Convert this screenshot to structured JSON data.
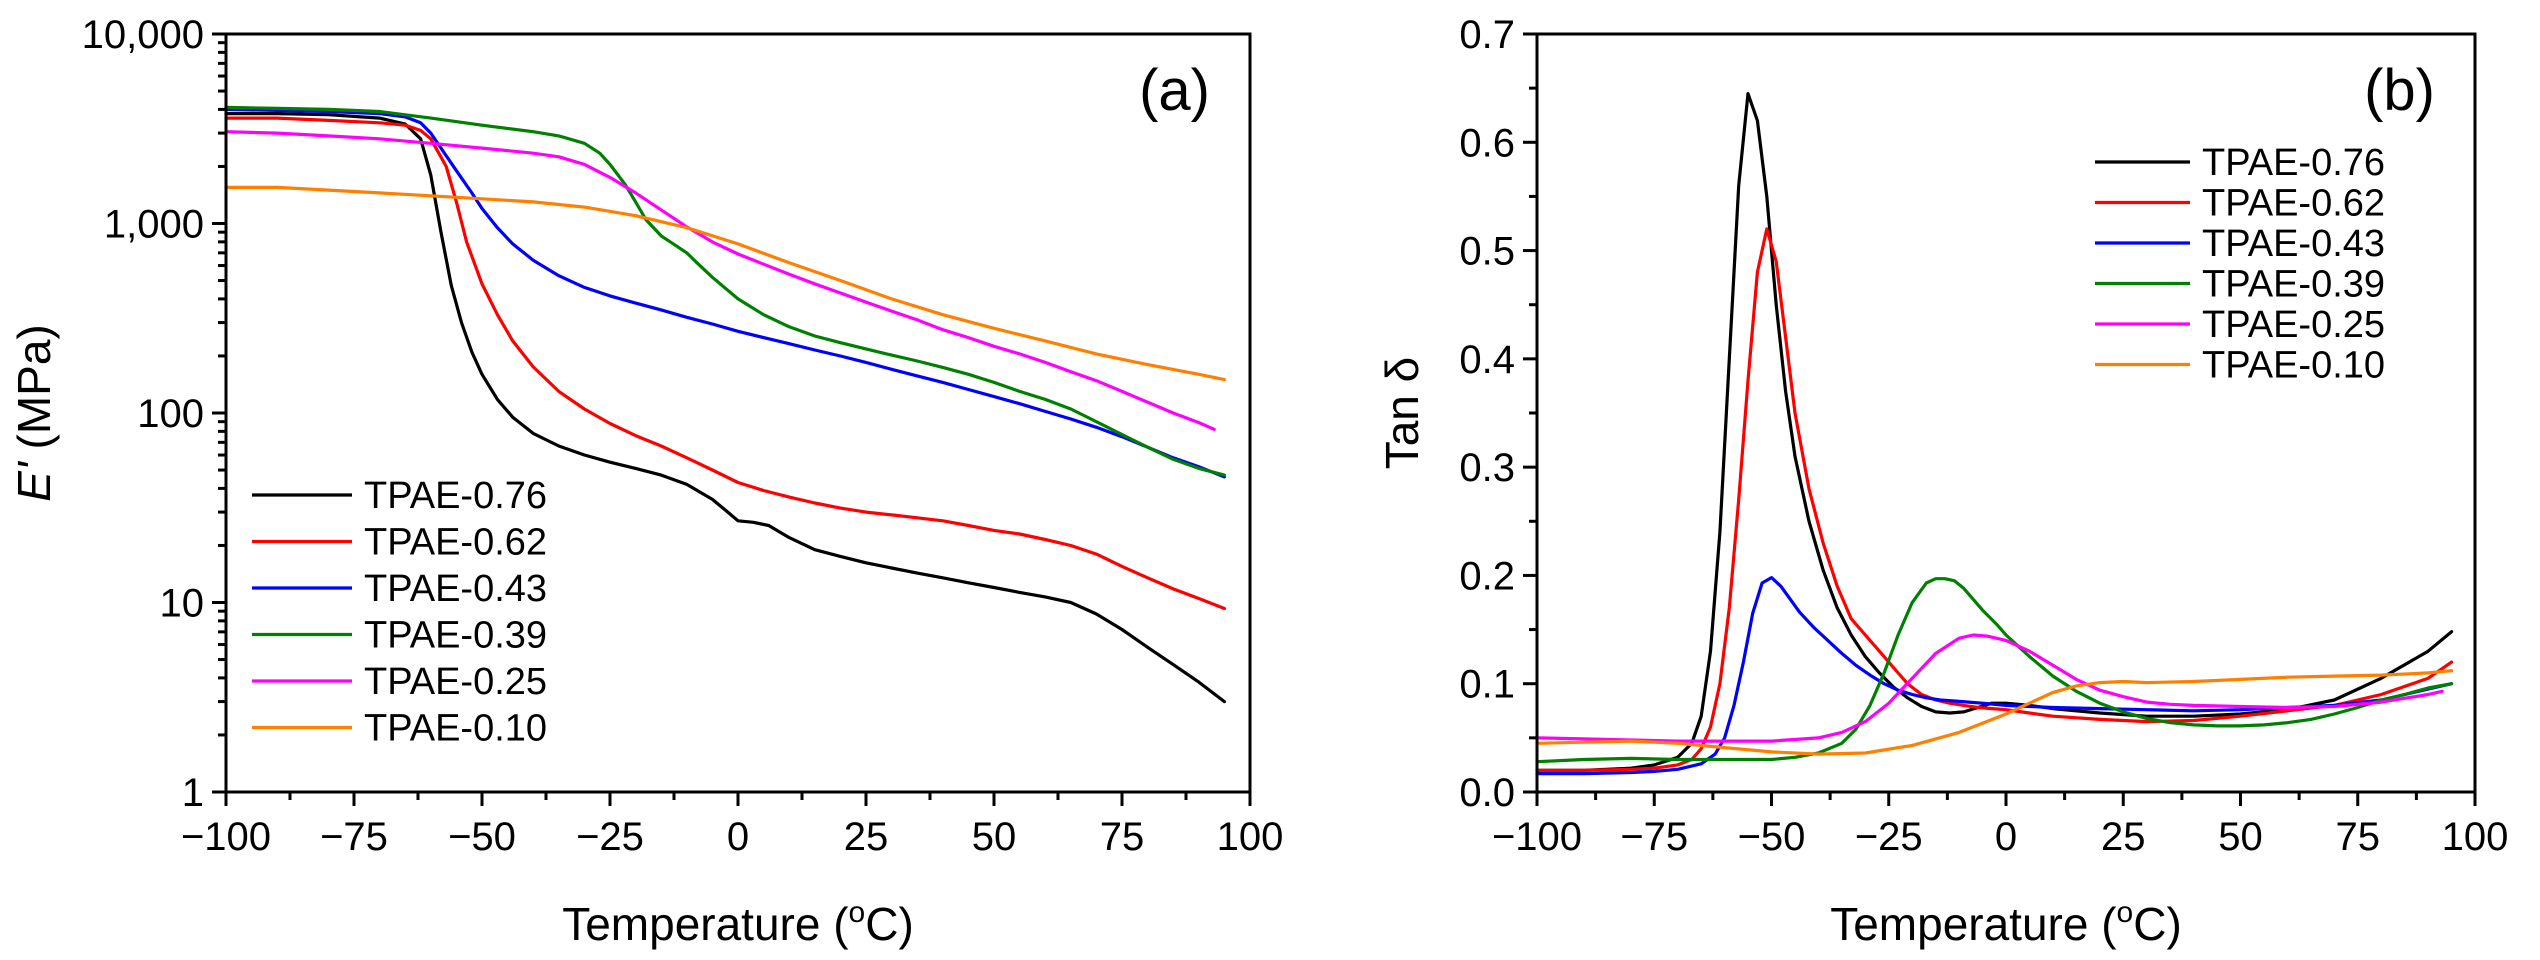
{
  "colors": {
    "TPAE-0.76": "#000000",
    "TPAE-0.62": "#ff0000",
    "TPAE-0.43": "#0000ff",
    "TPAE-0.39": "#008000",
    "TPAE-0.25": "#ff00ff",
    "TPAE-0.10": "#ff8000"
  },
  "chart_data": [
    {
      "type": "line",
      "panel": "(a)",
      "title": "",
      "xlabel": "Temperature (",
      "xlabel_sup": "o",
      "xlabel_unit": "C)",
      "ylabel_italic": "E'",
      "ylabel_rest": " (MPa)",
      "yscale": "log",
      "xlim": [
        -100,
        100
      ],
      "ylim": [
        1,
        10000
      ],
      "xticks": [
        -100,
        -75,
        -50,
        -25,
        0,
        25,
        50,
        75,
        100
      ],
      "xtick_labels": [
        "−100",
        "−75",
        "−50",
        "−25",
        "0",
        "25",
        "50",
        "75",
        "100"
      ],
      "yticks": [
        1,
        10,
        100,
        1000,
        10000
      ],
      "ytick_labels": [
        "1",
        "10",
        "100",
        "1,000",
        "10,000"
      ],
      "legend": [
        "TPAE-0.76",
        "TPAE-0.62",
        "TPAE-0.43",
        "TPAE-0.39",
        "TPAE-0.25",
        "TPAE-0.10"
      ],
      "legend_position": "lower-left",
      "series": [
        {
          "name": "TPAE-0.76",
          "x": [
            -100,
            -90,
            -80,
            -70,
            -65,
            -62,
            -60,
            -58,
            -56,
            -54,
            -52,
            -50,
            -47,
            -44,
            -40,
            -35,
            -30,
            -25,
            -20,
            -15,
            -10,
            -5,
            -2,
            0,
            3,
            6,
            10,
            15,
            20,
            25,
            30,
            35,
            40,
            45,
            50,
            55,
            60,
            65,
            70,
            75,
            80,
            85,
            90,
            95
          ],
          "y": [
            3800,
            3800,
            3750,
            3600,
            3350,
            2800,
            1800,
            900,
            470,
            300,
            210,
            160,
            118,
            95,
            78,
            67,
            60,
            55,
            51,
            47,
            42,
            35,
            30,
            27,
            26.5,
            25.5,
            22,
            19,
            17.5,
            16.2,
            15.2,
            14.3,
            13.5,
            12.7,
            12,
            11.3,
            10.7,
            10,
            8.7,
            7.2,
            5.8,
            4.7,
            3.8,
            3.0
          ]
        },
        {
          "name": "TPAE-0.62",
          "x": [
            -100,
            -90,
            -80,
            -70,
            -65,
            -62,
            -60,
            -57,
            -55,
            -53,
            -50,
            -47,
            -44,
            -40,
            -35,
            -30,
            -25,
            -20,
            -15,
            -10,
            -5,
            0,
            5,
            10,
            15,
            20,
            25,
            30,
            35,
            40,
            45,
            50,
            55,
            60,
            65,
            70,
            75,
            80,
            85,
            90,
            95
          ],
          "y": [
            3600,
            3600,
            3500,
            3400,
            3300,
            3100,
            2800,
            2000,
            1300,
            800,
            480,
            330,
            240,
            175,
            130,
            105,
            88,
            76,
            67,
            58,
            50,
            43,
            39,
            36,
            33.5,
            31.5,
            30,
            29,
            28,
            27,
            25.5,
            24,
            23,
            21.5,
            20,
            18,
            15.5,
            13.5,
            11.8,
            10.5,
            9.3
          ]
        },
        {
          "name": "TPAE-0.43",
          "x": [
            -100,
            -90,
            -80,
            -70,
            -65,
            -62,
            -60,
            -58,
            -55,
            -52,
            -50,
            -47,
            -44,
            -40,
            -35,
            -30,
            -25,
            -20,
            -15,
            -10,
            -5,
            0,
            5,
            10,
            15,
            20,
            25,
            30,
            35,
            40,
            45,
            50,
            55,
            60,
            65,
            70,
            75,
            80,
            85,
            90,
            95
          ],
          "y": [
            4000,
            3950,
            3900,
            3800,
            3650,
            3400,
            3000,
            2500,
            1900,
            1450,
            1200,
            950,
            780,
            640,
            530,
            460,
            415,
            380,
            350,
            320,
            295,
            270,
            250,
            232,
            215,
            200,
            185,
            170,
            157,
            145,
            133,
            122,
            112,
            102,
            93,
            84,
            75,
            66,
            58,
            52,
            46
          ]
        },
        {
          "name": "TPAE-0.39",
          "x": [
            -100,
            -90,
            -80,
            -70,
            -60,
            -50,
            -40,
            -35,
            -30,
            -27,
            -25,
            -22,
            -20,
            -18,
            -15,
            -12,
            -10,
            -8,
            -5,
            0,
            5,
            10,
            15,
            20,
            25,
            30,
            35,
            40,
            45,
            50,
            55,
            60,
            65,
            70,
            75,
            80,
            85,
            90,
            95
          ],
          "y": [
            4100,
            4050,
            4000,
            3900,
            3600,
            3300,
            3050,
            2900,
            2650,
            2350,
            2050,
            1600,
            1300,
            1050,
            860,
            760,
            700,
            620,
            520,
            400,
            330,
            285,
            255,
            235,
            218,
            202,
            188,
            174,
            160,
            145,
            130,
            118,
            105,
            90,
            77,
            66,
            57,
            51,
            47
          ]
        },
        {
          "name": "TPAE-0.25",
          "x": [
            -100,
            -90,
            -80,
            -70,
            -60,
            -50,
            -40,
            -35,
            -30,
            -25,
            -20,
            -15,
            -10,
            -5,
            0,
            5,
            10,
            15,
            20,
            25,
            30,
            35,
            40,
            45,
            50,
            55,
            60,
            65,
            70,
            75,
            80,
            85,
            90,
            93
          ],
          "y": [
            3050,
            3000,
            2900,
            2800,
            2650,
            2500,
            2350,
            2250,
            2050,
            1750,
            1450,
            1180,
            960,
            800,
            690,
            610,
            540,
            480,
            430,
            385,
            345,
            310,
            275,
            250,
            225,
            205,
            185,
            165,
            148,
            130,
            114,
            100,
            89,
            82
          ]
        },
        {
          "name": "TPAE-0.10",
          "x": [
            -100,
            -90,
            -80,
            -70,
            -60,
            -50,
            -40,
            -30,
            -20,
            -10,
            0,
            10,
            20,
            30,
            40,
            50,
            60,
            70,
            80,
            90,
            95
          ],
          "y": [
            1550,
            1550,
            1500,
            1450,
            1400,
            1350,
            1300,
            1220,
            1100,
            950,
            780,
            620,
            500,
            400,
            330,
            280,
            240,
            205,
            180,
            160,
            150
          ]
        }
      ]
    },
    {
      "type": "line",
      "panel": "(b)",
      "title": "",
      "xlabel": "Temperature (",
      "xlabel_sup": "o",
      "xlabel_unit": "C)",
      "ylabel": "Tan δ",
      "yscale": "linear",
      "xlim": [
        -100,
        100
      ],
      "ylim": [
        0,
        0.7
      ],
      "xticks": [
        -100,
        -75,
        -50,
        -25,
        0,
        25,
        50,
        75,
        100
      ],
      "xtick_labels": [
        "−100",
        "−75",
        "−50",
        "−25",
        "0",
        "25",
        "50",
        "75",
        "100"
      ],
      "yticks": [
        0,
        0.1,
        0.2,
        0.3,
        0.4,
        0.5,
        0.6,
        0.7
      ],
      "ytick_labels": [
        "0.0",
        "0.1",
        "0.2",
        "0.3",
        "0.4",
        "0.5",
        "0.6",
        "0.7"
      ],
      "legend": [
        "TPAE-0.76",
        "TPAE-0.62",
        "TPAE-0.43",
        "TPAE-0.39",
        "TPAE-0.25",
        "TPAE-0.10"
      ],
      "legend_position": "top-right",
      "series": [
        {
          "name": "TPAE-0.76",
          "x": [
            -100,
            -90,
            -80,
            -75,
            -70,
            -67,
            -65,
            -63,
            -61,
            -59,
            -57,
            -55,
            -53,
            -51,
            -49,
            -47,
            -45,
            -42,
            -39,
            -36,
            -33,
            -30,
            -27,
            -24,
            -21,
            -18,
            -15,
            -12,
            -9,
            -6,
            -3,
            0,
            5,
            10,
            20,
            30,
            40,
            50,
            60,
            70,
            80,
            90,
            95
          ],
          "y": [
            0.02,
            0.02,
            0.022,
            0.025,
            0.032,
            0.045,
            0.07,
            0.13,
            0.24,
            0.4,
            0.56,
            0.645,
            0.62,
            0.55,
            0.45,
            0.37,
            0.31,
            0.25,
            0.205,
            0.17,
            0.145,
            0.125,
            0.11,
            0.097,
            0.087,
            0.079,
            0.074,
            0.073,
            0.074,
            0.078,
            0.082,
            0.082,
            0.08,
            0.077,
            0.073,
            0.07,
            0.07,
            0.072,
            0.076,
            0.085,
            0.105,
            0.13,
            0.148
          ]
        },
        {
          "name": "TPAE-0.62",
          "x": [
            -100,
            -90,
            -80,
            -75,
            -70,
            -67,
            -65,
            -63,
            -61,
            -59,
            -57,
            -55,
            -53,
            -51,
            -49,
            -47,
            -45,
            -42,
            -39,
            -36,
            -33,
            -30,
            -27,
            -24,
            -21,
            -18,
            -15,
            -12,
            -9,
            -6,
            -3,
            0,
            5,
            10,
            20,
            30,
            40,
            50,
            60,
            70,
            80,
            90,
            95
          ],
          "y": [
            0.02,
            0.02,
            0.021,
            0.022,
            0.025,
            0.03,
            0.04,
            0.06,
            0.1,
            0.17,
            0.27,
            0.38,
            0.48,
            0.52,
            0.49,
            0.42,
            0.35,
            0.28,
            0.23,
            0.19,
            0.16,
            0.145,
            0.13,
            0.115,
            0.1,
            0.09,
            0.085,
            0.082,
            0.08,
            0.078,
            0.077,
            0.076,
            0.073,
            0.07,
            0.067,
            0.065,
            0.066,
            0.07,
            0.075,
            0.08,
            0.09,
            0.105,
            0.12
          ]
        },
        {
          "name": "TPAE-0.43",
          "x": [
            -100,
            -90,
            -80,
            -75,
            -70,
            -65,
            -62,
            -60,
            -58,
            -56,
            -54,
            -52,
            -50,
            -48,
            -46,
            -44,
            -41,
            -38,
            -35,
            -32,
            -29,
            -26,
            -23,
            -20,
            -17,
            -14,
            -11,
            -8,
            -5,
            0,
            10,
            20,
            30,
            40,
            50,
            60,
            70,
            80,
            90,
            95
          ],
          "y": [
            0.017,
            0.017,
            0.018,
            0.019,
            0.021,
            0.026,
            0.035,
            0.05,
            0.08,
            0.12,
            0.165,
            0.193,
            0.198,
            0.19,
            0.178,
            0.166,
            0.152,
            0.14,
            0.128,
            0.117,
            0.108,
            0.1,
            0.094,
            0.09,
            0.087,
            0.085,
            0.084,
            0.083,
            0.082,
            0.08,
            0.078,
            0.077,
            0.076,
            0.075,
            0.076,
            0.078,
            0.08,
            0.085,
            0.095,
            0.1
          ]
        },
        {
          "name": "TPAE-0.39",
          "x": [
            -100,
            -90,
            -80,
            -70,
            -60,
            -50,
            -45,
            -40,
            -35,
            -32,
            -29,
            -26,
            -23,
            -20,
            -17,
            -15,
            -13,
            -11,
            -9,
            -7,
            -5,
            -2,
            0,
            5,
            10,
            15,
            20,
            25,
            30,
            35,
            40,
            45,
            50,
            55,
            60,
            65,
            70,
            75,
            80,
            85,
            90,
            95
          ],
          "y": [
            0.028,
            0.03,
            0.031,
            0.03,
            0.03,
            0.03,
            0.032,
            0.036,
            0.045,
            0.058,
            0.08,
            0.11,
            0.145,
            0.175,
            0.193,
            0.197,
            0.197,
            0.195,
            0.188,
            0.178,
            0.168,
            0.155,
            0.145,
            0.125,
            0.107,
            0.093,
            0.082,
            0.074,
            0.068,
            0.064,
            0.062,
            0.061,
            0.061,
            0.062,
            0.064,
            0.067,
            0.072,
            0.078,
            0.085,
            0.09,
            0.096,
            0.1
          ]
        },
        {
          "name": "TPAE-0.25",
          "x": [
            -100,
            -90,
            -80,
            -70,
            -60,
            -50,
            -40,
            -35,
            -30,
            -25,
            -20,
            -15,
            -10,
            -7,
            -4,
            0,
            5,
            10,
            15,
            20,
            25,
            30,
            35,
            40,
            50,
            60,
            70,
            80,
            90,
            93
          ],
          "y": [
            0.05,
            0.049,
            0.048,
            0.047,
            0.047,
            0.047,
            0.05,
            0.055,
            0.065,
            0.082,
            0.105,
            0.128,
            0.142,
            0.145,
            0.144,
            0.14,
            0.13,
            0.117,
            0.104,
            0.094,
            0.088,
            0.083,
            0.081,
            0.08,
            0.079,
            0.078,
            0.079,
            0.083,
            0.09,
            0.093
          ]
        },
        {
          "name": "TPAE-0.10",
          "x": [
            -100,
            -90,
            -80,
            -70,
            -60,
            -50,
            -40,
            -30,
            -20,
            -10,
            0,
            5,
            10,
            15,
            20,
            25,
            30,
            40,
            50,
            60,
            70,
            80,
            90,
            95
          ],
          "y": [
            0.045,
            0.046,
            0.047,
            0.045,
            0.041,
            0.037,
            0.035,
            0.036,
            0.043,
            0.055,
            0.072,
            0.082,
            0.092,
            0.098,
            0.101,
            0.102,
            0.101,
            0.102,
            0.104,
            0.106,
            0.107,
            0.108,
            0.11,
            0.112
          ]
        }
      ]
    }
  ]
}
